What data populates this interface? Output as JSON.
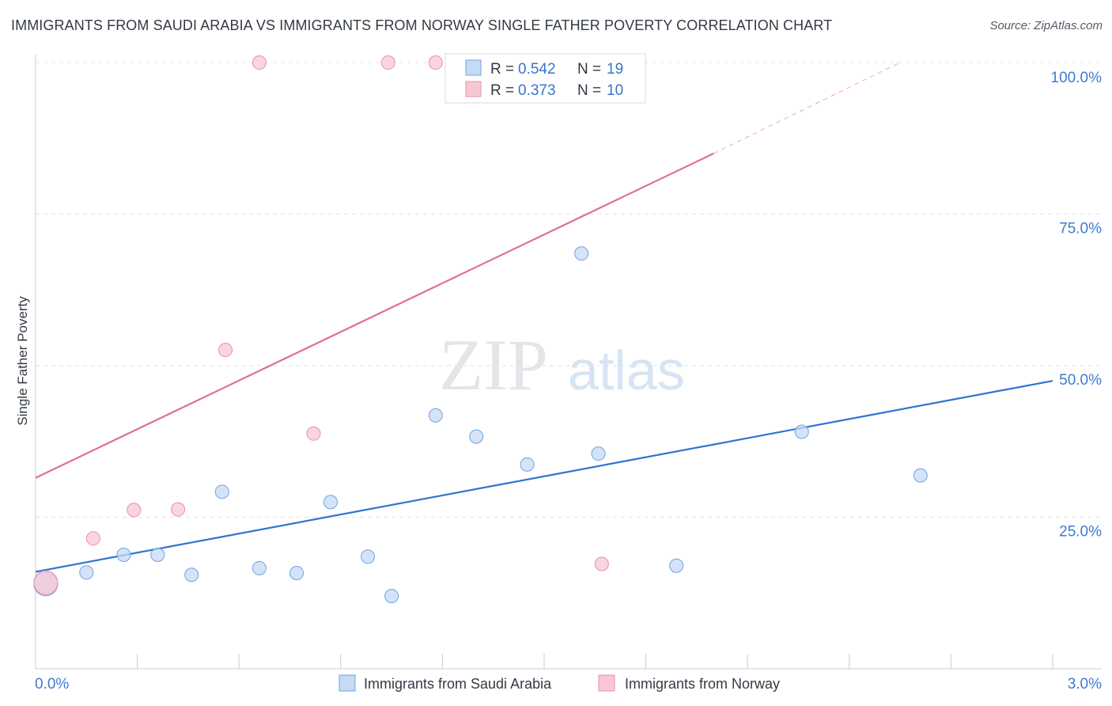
{
  "title": "IMMIGRANTS FROM SAUDI ARABIA VS IMMIGRANTS FROM NORWAY SINGLE FATHER POVERTY CORRELATION CHART",
  "source": "Source: ZipAtlas.com",
  "watermark": {
    "zip": "ZIP",
    "atlas": "atlas"
  },
  "legend": {
    "rows": [
      {
        "r_label": "R =",
        "r_value": "0.542",
        "n_label": "N =",
        "n_value": "19"
      },
      {
        "r_label": "R =",
        "r_value": "0.373",
        "n_label": "N =",
        "n_value": "10"
      }
    ]
  },
  "chart_data": {
    "type": "scatter",
    "title": "IMMIGRANTS FROM SAUDI ARABIA VS IMMIGRANTS FROM NORWAY SINGLE FATHER POVERTY CORRELATION CHART",
    "xlabel": "",
    "ylabel": "Single Father Poverty",
    "xlim": [
      0,
      3.0
    ],
    "ylim": [
      0,
      100
    ],
    "x_tick_labels": [
      {
        "value": 0,
        "label": "0.0%"
      },
      {
        "value": 3.0,
        "label": "3.0%"
      }
    ],
    "y_tick_labels": [
      {
        "value": 25,
        "label": "25.0%"
      },
      {
        "value": 50,
        "label": "50.0%"
      },
      {
        "value": 75,
        "label": "75.0%"
      },
      {
        "value": 100,
        "label": "100.0%"
      }
    ],
    "series": [
      {
        "name": "Immigrants from Saudi Arabia",
        "color": "#6fa3e0",
        "fill": "#c5daf5",
        "line_color": "#2f74d0",
        "points": [
          {
            "x": 0.03,
            "y": 14.0,
            "big": true
          },
          {
            "x": 0.15,
            "y": 15.9
          },
          {
            "x": 0.26,
            "y": 18.8
          },
          {
            "x": 0.36,
            "y": 18.8
          },
          {
            "x": 0.46,
            "y": 15.5
          },
          {
            "x": 0.55,
            "y": 29.2
          },
          {
            "x": 0.66,
            "y": 16.6
          },
          {
            "x": 0.77,
            "y": 15.8
          },
          {
            "x": 0.87,
            "y": 27.5
          },
          {
            "x": 0.98,
            "y": 18.5
          },
          {
            "x": 1.05,
            "y": 12.0
          },
          {
            "x": 1.18,
            "y": 41.8
          },
          {
            "x": 1.3,
            "y": 38.3
          },
          {
            "x": 1.45,
            "y": 33.7
          },
          {
            "x": 1.61,
            "y": 68.5
          },
          {
            "x": 1.66,
            "y": 35.5
          },
          {
            "x": 1.89,
            "y": 17.0
          },
          {
            "x": 2.26,
            "y": 39.1
          },
          {
            "x": 2.61,
            "y": 31.9
          }
        ],
        "trend": {
          "x0": 0,
          "y0": 16.0,
          "x1": 3.0,
          "y1": 47.5
        }
      },
      {
        "name": "Immigrants from Norway",
        "color": "#e88fa8",
        "fill": "#f8c7d4",
        "line_color": "#e06f93",
        "points": [
          {
            "x": 0.03,
            "y": 14.2,
            "big": true
          },
          {
            "x": 0.17,
            "y": 21.5
          },
          {
            "x": 0.29,
            "y": 26.2
          },
          {
            "x": 0.42,
            "y": 26.3
          },
          {
            "x": 0.56,
            "y": 52.6
          },
          {
            "x": 0.66,
            "y": 100.0
          },
          {
            "x": 0.82,
            "y": 38.8
          },
          {
            "x": 1.04,
            "y": 100.0
          },
          {
            "x": 1.18,
            "y": 100.0
          },
          {
            "x": 1.67,
            "y": 17.3
          }
        ],
        "trend": {
          "x0": 0,
          "y0": 31.5,
          "x1": 2.0,
          "y1": 85.0
        },
        "trend_extension": {
          "x0": 2.0,
          "y0": 85.0,
          "x1": 2.55,
          "y1": 100.0
        }
      }
    ],
    "legend_position": "top-center"
  }
}
